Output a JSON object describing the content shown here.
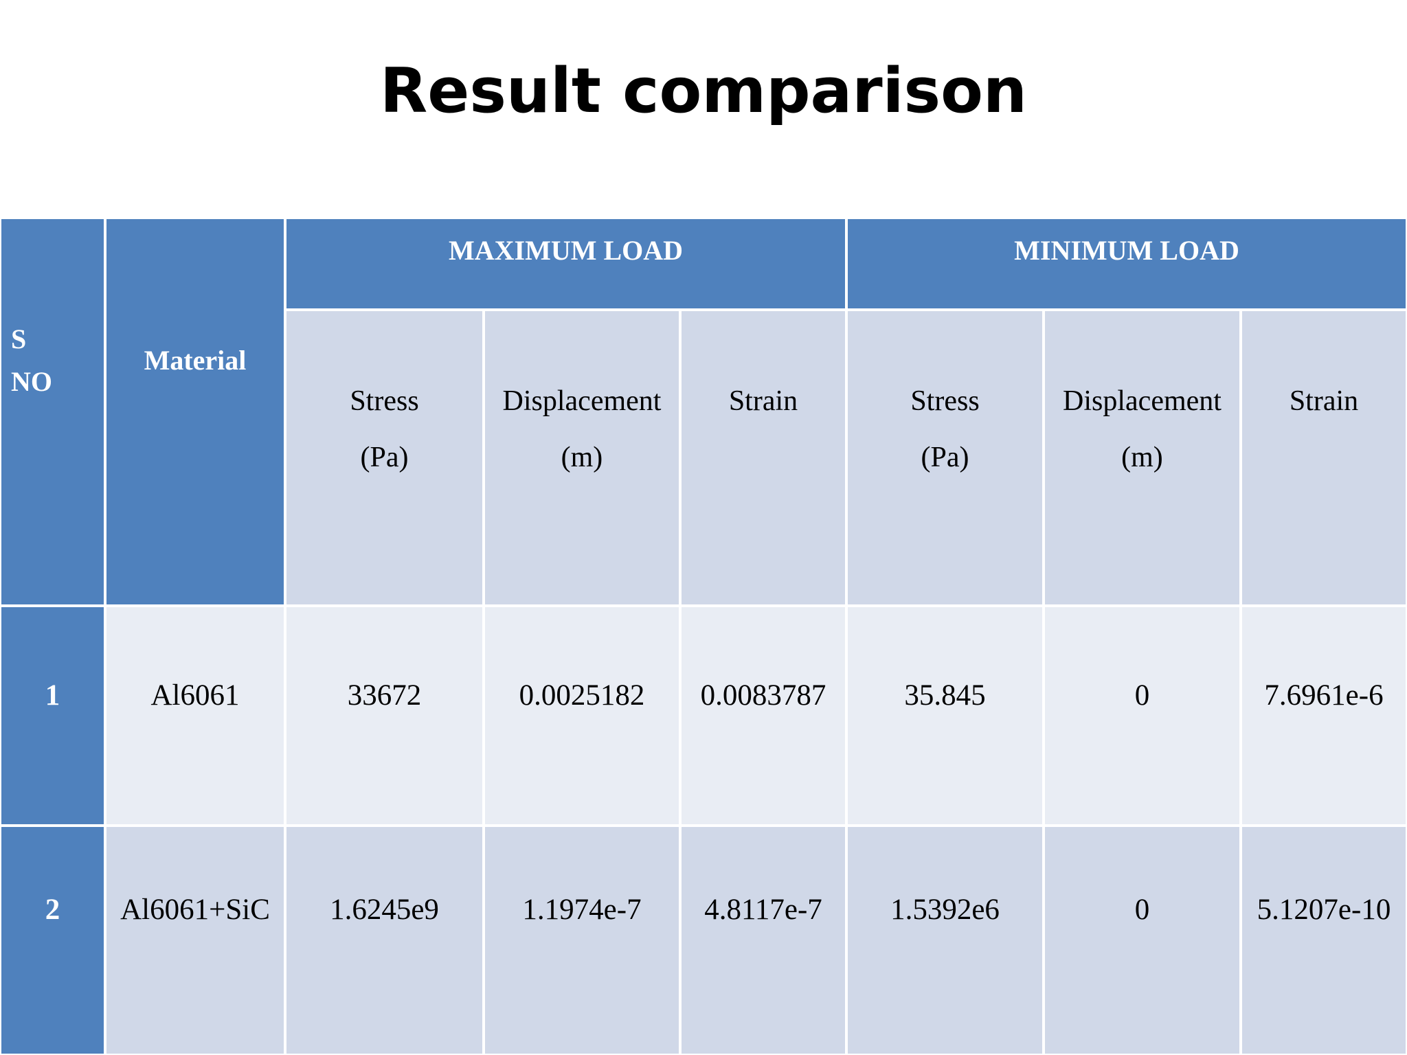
{
  "title": "Result comparison",
  "table": {
    "headers": {
      "sno": "S\nNO",
      "material": "Material",
      "groups": [
        "MAXIMUM LOAD",
        "MINIMUM LOAD"
      ],
      "columns": [
        "Stress\n(Pa)",
        "Displacement\n(m)",
        "Strain",
        "Stress\n(Pa)",
        "Displacement\n(m)",
        "Strain"
      ]
    },
    "rows": [
      [
        "1",
        "Al6061",
        "33672",
        "0.0025182",
        "0.0083787",
        "35.845",
        "0",
        "7.6961e-6"
      ],
      [
        "2",
        "Al6061+SiC",
        "1.6245e9",
        "1.1974e-7",
        "4.8117e-7",
        "1.5392e6",
        "0",
        "5.1207e-10"
      ]
    ]
  }
}
